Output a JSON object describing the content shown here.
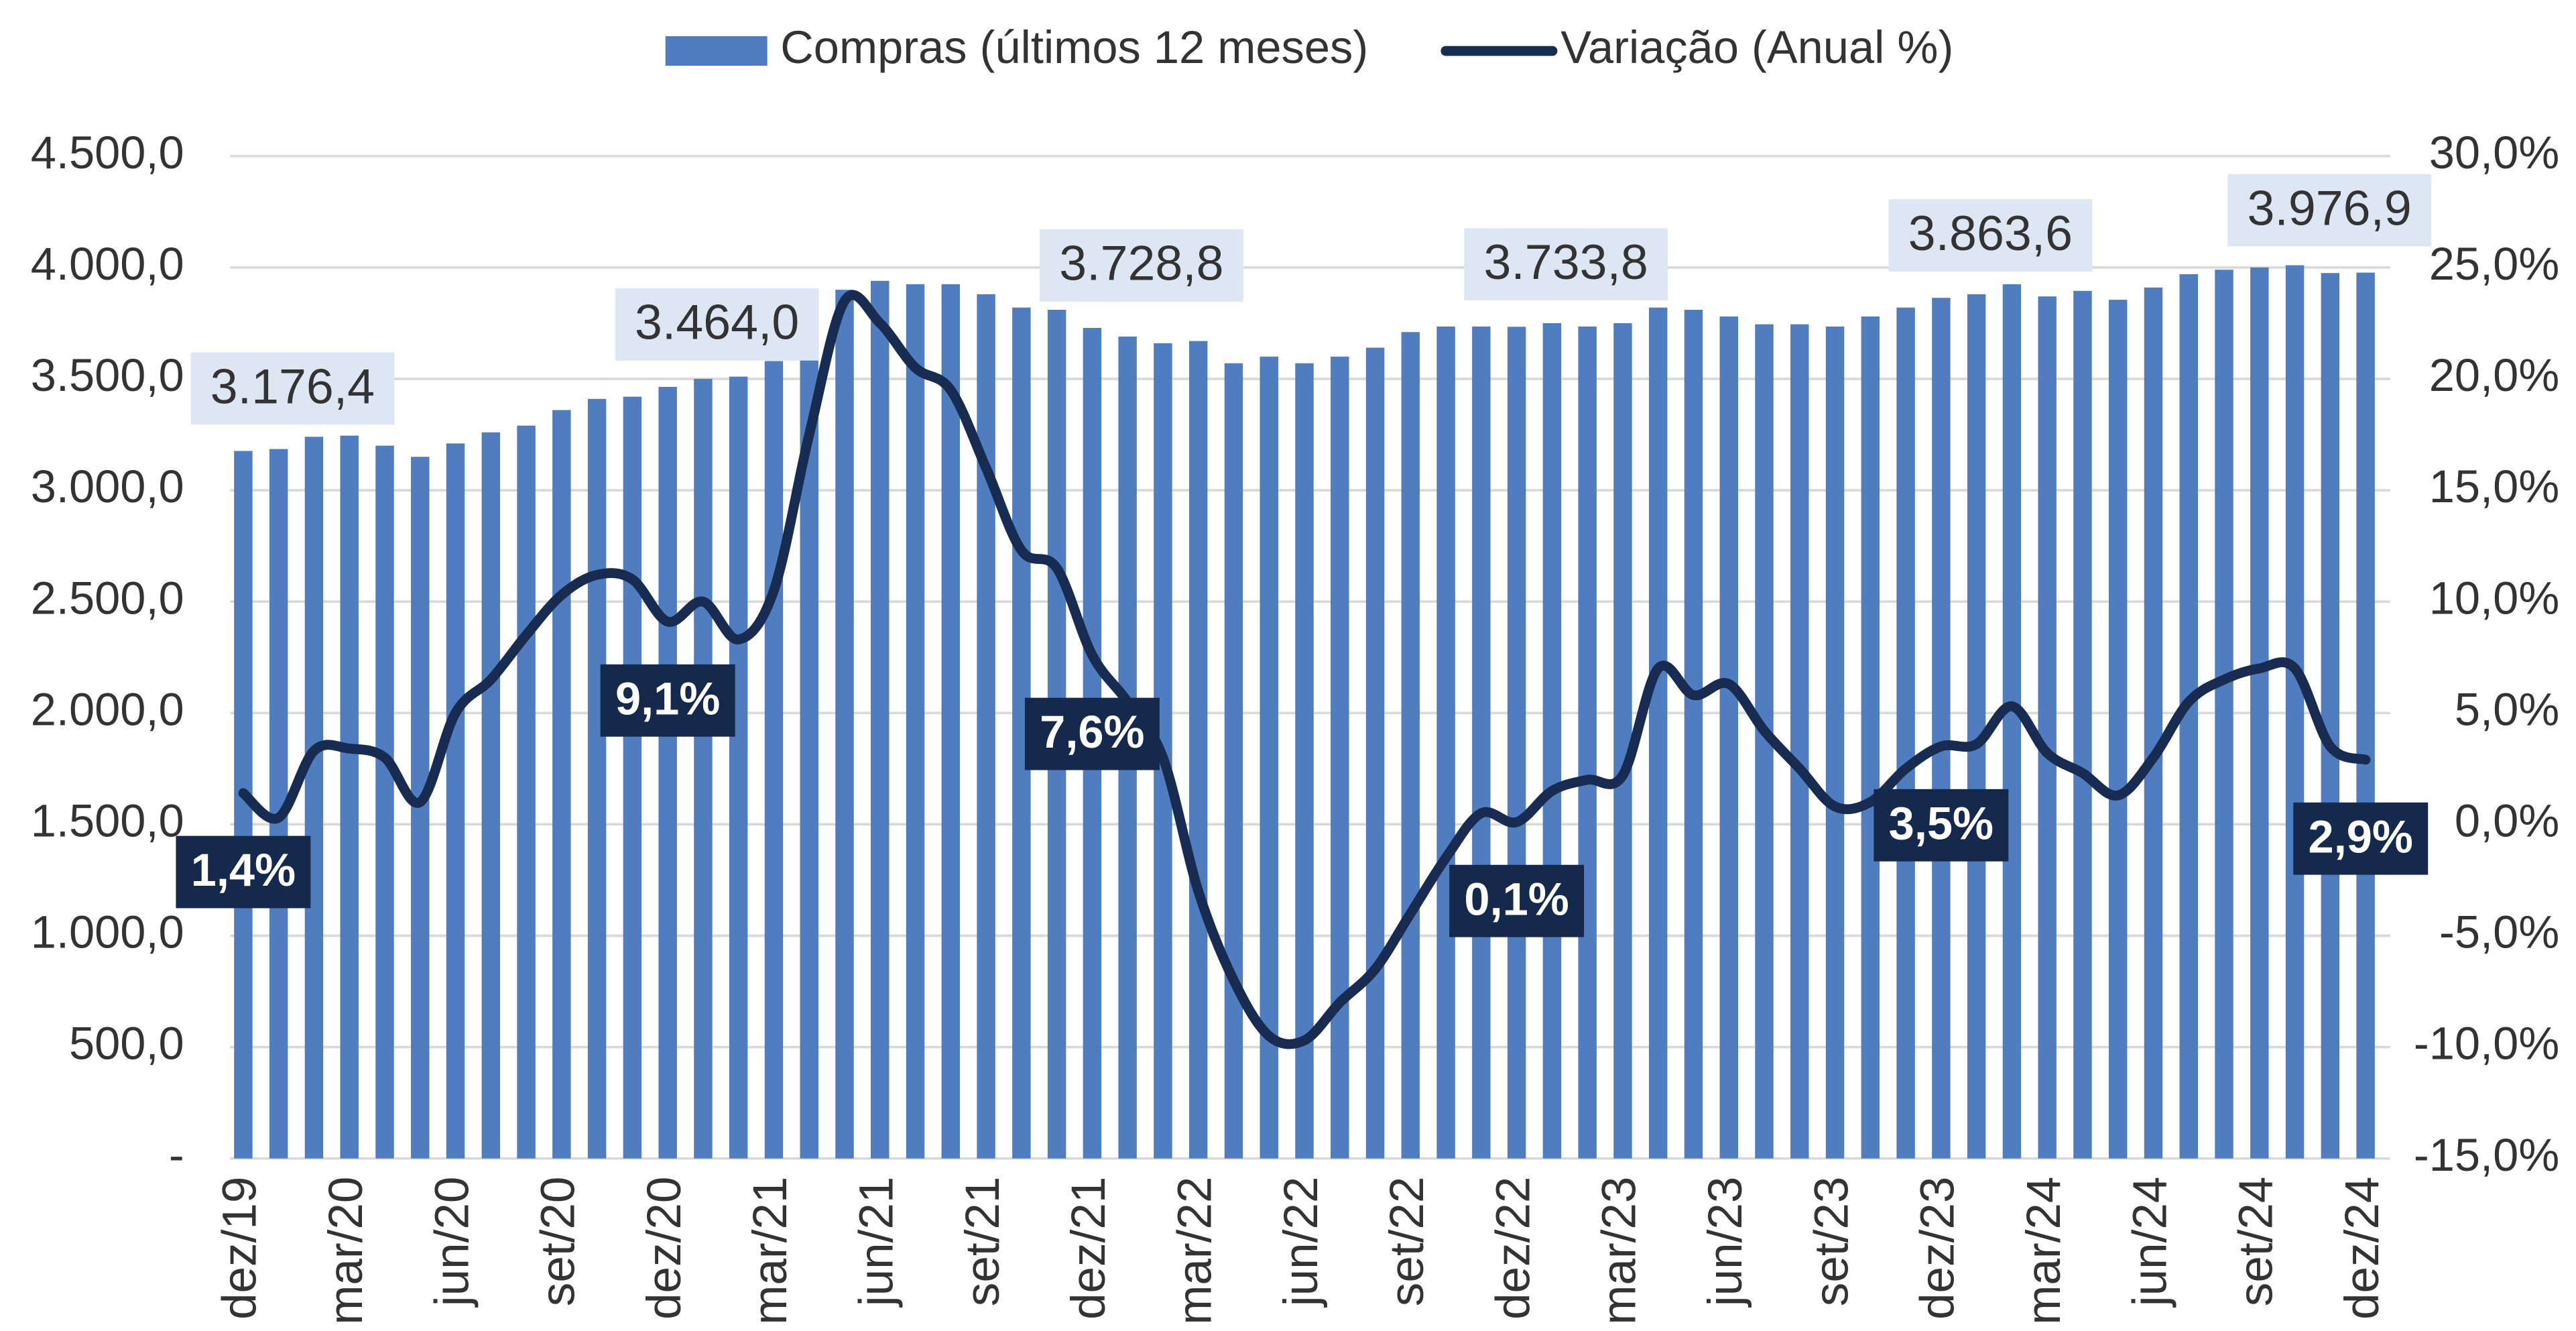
{
  "chart_data": {
    "type": "bar-line",
    "categories": [
      "dez/19",
      null,
      null,
      "mar/20",
      null,
      null,
      "jun/20",
      null,
      null,
      "set/20",
      null,
      null,
      "dez/20",
      null,
      null,
      "mar/21",
      null,
      null,
      "jun/21",
      null,
      null,
      "set/21",
      null,
      null,
      "dez/21",
      null,
      null,
      "mar/22",
      null,
      null,
      "jun/22",
      null,
      null,
      "set/22",
      null,
      null,
      "dez/22",
      null,
      null,
      "mar/23",
      null,
      null,
      "jun/23",
      null,
      null,
      "set/23",
      null,
      null,
      "dez/23",
      null,
      null,
      "mar/24",
      null,
      null,
      "jun/24",
      null,
      null,
      "set/24",
      null,
      null,
      "dez/24"
    ],
    "series": [
      {
        "name": "Compras (últimos 12 meses)",
        "color": "#4f7dbf",
        "type": "bar",
        "axis": "y",
        "values": [
          3176.4,
          3185,
          3240,
          3245,
          3200,
          3150,
          3210,
          3260,
          3290,
          3360,
          3410,
          3420,
          3464.0,
          3500,
          3510,
          3580,
          3750,
          3900,
          3940,
          3925,
          3925,
          3880,
          3820,
          3810,
          3728.8,
          3690,
          3660,
          3670,
          3570,
          3600,
          3570,
          3600,
          3640,
          3710,
          3735,
          3735,
          3733.8,
          3750,
          3735,
          3750,
          3820,
          3810,
          3780,
          3745,
          3745,
          3735,
          3780,
          3820,
          3863.6,
          3880,
          3925,
          3870,
          3895,
          3855,
          3910,
          3970,
          3990,
          4000,
          4010,
          3975,
          3976.9
        ],
        "value_labels": [
          "3.176,4",
          null,
          null,
          null,
          null,
          null,
          null,
          null,
          null,
          null,
          null,
          null,
          "3.464,0",
          null,
          null,
          null,
          null,
          null,
          null,
          null,
          null,
          null,
          null,
          null,
          "3.728,8",
          null,
          null,
          null,
          null,
          null,
          null,
          null,
          null,
          null,
          null,
          null,
          "3.733,8",
          null,
          null,
          null,
          null,
          null,
          null,
          null,
          null,
          null,
          null,
          null,
          "3.863,6",
          null,
          null,
          null,
          null,
          null,
          null,
          null,
          null,
          null,
          null,
          null,
          "3.976,9"
        ]
      },
      {
        "name": "Variação (Anual %)",
        "color": "#172c50",
        "type": "line",
        "axis": "y2",
        "values": [
          1.4,
          0.3,
          3.3,
          3.4,
          3.0,
          1.0,
          5.0,
          6.5,
          8.5,
          10.3,
          11.2,
          11.0,
          9.1,
          10.0,
          8.3,
          10.5,
          17.5,
          23.5,
          22.5,
          20.5,
          19.5,
          16.0,
          12.3,
          11.5,
          7.6,
          5.5,
          3.0,
          -3.0,
          -7.0,
          -9.5,
          -9.7,
          -8.0,
          -6.5,
          -4.0,
          -1.5,
          0.5,
          0.1,
          1.5,
          2.0,
          2.2,
          7.0,
          5.8,
          6.3,
          4.2,
          2.5,
          0.8,
          1.0,
          2.5,
          3.5,
          3.6,
          5.3,
          3.2,
          2.3,
          1.3,
          3.0,
          5.5,
          6.5,
          7.0,
          7.0,
          3.5,
          2.9
        ],
        "value_labels": [
          "1,4%",
          null,
          null,
          null,
          null,
          null,
          null,
          null,
          null,
          null,
          null,
          null,
          "9,1%",
          null,
          null,
          null,
          null,
          null,
          null,
          null,
          null,
          null,
          null,
          null,
          "7,6%",
          null,
          null,
          null,
          null,
          null,
          null,
          null,
          null,
          null,
          null,
          null,
          "0,1%",
          null,
          null,
          null,
          null,
          null,
          null,
          null,
          null,
          null,
          null,
          null,
          "3,5%",
          null,
          null,
          null,
          null,
          null,
          null,
          null,
          null,
          null,
          null,
          null,
          "2,9%"
        ]
      }
    ],
    "ylim": [
      0,
      4500
    ],
    "yticks": [
      {
        "value": 0,
        "label": "-"
      },
      {
        "value": 500,
        "label": "500,0"
      },
      {
        "value": 1000,
        "label": "1.000,0"
      },
      {
        "value": 1500,
        "label": "1.500,0"
      },
      {
        "value": 2000,
        "label": "2.000,0"
      },
      {
        "value": 2500,
        "label": "2.500,0"
      },
      {
        "value": 3000,
        "label": "3.000,0"
      },
      {
        "value": 3500,
        "label": "3.500,0"
      },
      {
        "value": 4000,
        "label": "4.000,0"
      },
      {
        "value": 4500,
        "label": "4.500,0"
      }
    ],
    "y2lim": [
      -15,
      30
    ],
    "y2ticks": [
      {
        "value": -15,
        "label": "-15,0%"
      },
      {
        "value": -10,
        "label": "-10,0%"
      },
      {
        "value": -5,
        "label": "-5,0%"
      },
      {
        "value": 0,
        "label": "0,0%"
      },
      {
        "value": 5,
        "label": "5,0%"
      },
      {
        "value": 10,
        "label": "10,0%"
      },
      {
        "value": 15,
        "label": "15,0%"
      },
      {
        "value": 20,
        "label": "20,0%"
      },
      {
        "value": 25,
        "label": "25,0%"
      },
      {
        "value": 30,
        "label": "30,0%"
      }
    ],
    "grid": true,
    "legend": "top"
  }
}
